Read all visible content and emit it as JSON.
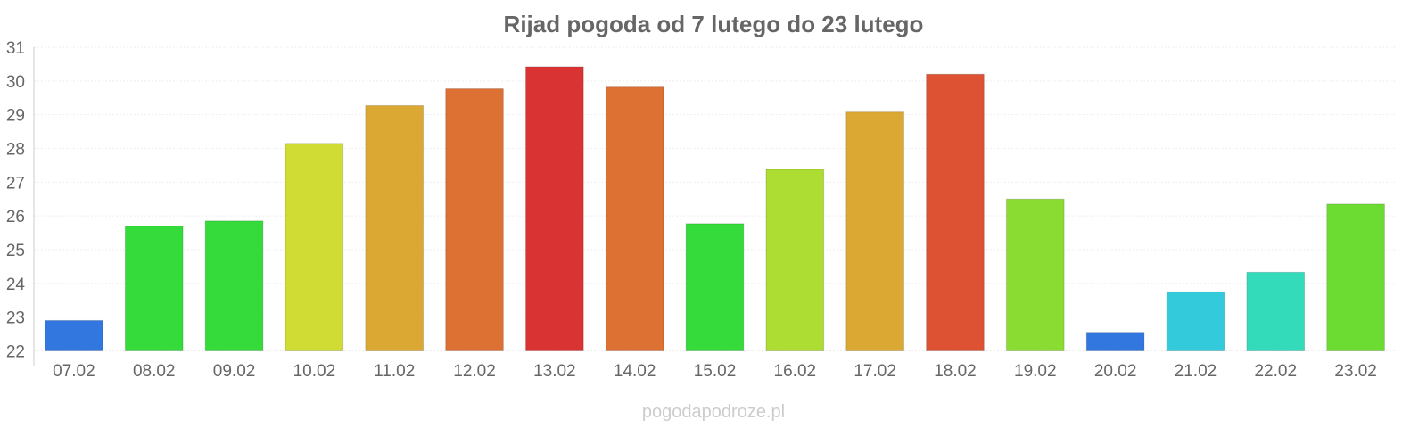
{
  "chart_data": {
    "type": "bar",
    "title": "Rijad pogoda od 7 lutego do 23 lutego",
    "xlabel": "",
    "ylabel": "",
    "categories": [
      "07.02",
      "08.02",
      "09.02",
      "10.02",
      "11.02",
      "12.02",
      "13.02",
      "14.02",
      "15.02",
      "16.02",
      "17.02",
      "18.02",
      "19.02",
      "20.02",
      "21.02",
      "22.02",
      "23.02"
    ],
    "values": [
      22.9,
      25.7,
      25.85,
      28.15,
      29.27,
      29.77,
      30.42,
      29.82,
      25.77,
      27.38,
      29.08,
      30.2,
      26.5,
      22.55,
      23.75,
      24.33,
      26.35
    ],
    "colors": [
      "#3276e0",
      "#34db3a",
      "#34db3a",
      "#d0dc33",
      "#dba933",
      "#dd7033",
      "#da3333",
      "#dd7033",
      "#34db3a",
      "#addc33",
      "#dba933",
      "#dc5233",
      "#8adc33",
      "#3276e0",
      "#33cbdb",
      "#33dbbb",
      "#6cdc33"
    ],
    "ylim": [
      22,
      31
    ],
    "yticks": [
      22,
      23,
      24,
      25,
      26,
      27,
      28,
      29,
      30,
      31
    ],
    "grid": true,
    "legend": "none"
  },
  "watermark": "pogodapodroze.pl"
}
